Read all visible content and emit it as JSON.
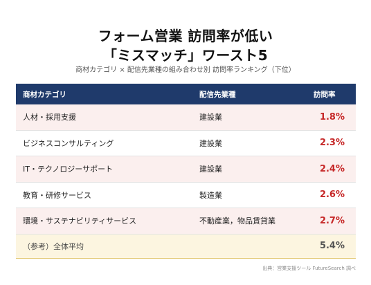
{
  "title_line1": "フォーム営業 訪問率が低い",
  "title_line2": "「ミスマッチ」ワースト5",
  "subtitle": "商材カテゴリ × 配信先業種の組み合わせ別 訪問率ランキング（下位）",
  "source": "出典：営業支援ツール FutureSearch 調べ",
  "colors": {
    "header": "#1f3a6b",
    "rate": "#c62828",
    "row_tint": "#fbefee",
    "avg_bg": "#fcf5e0"
  },
  "chart_data": {
    "type": "table",
    "title": "フォーム営業 訪問率が低い 「ミスマッチ」ワースト5",
    "columns": [
      "商材カテゴリ",
      "配信先業種",
      "訪問率"
    ],
    "rows": [
      {
        "category": "人材・採用支援",
        "industry": "建設業",
        "rate": "1.8%",
        "value": 1.8
      },
      {
        "category": "ビジネスコンサルティング",
        "industry": "建設業",
        "rate": "2.3%",
        "value": 2.3
      },
      {
        "category": "IT・テクノロジーサポート",
        "industry": "建設業",
        "rate": "2.4%",
        "value": 2.4
      },
      {
        "category": "教育・研修サービス",
        "industry": "製造業",
        "rate": "2.6%",
        "value": 2.6
      },
      {
        "category": "環境・サステナビリティサービス",
        "industry": "不動産業，物品賃貸業",
        "rate": "2.7%",
        "value": 2.7
      }
    ],
    "average": {
      "label": "（参考）全体平均",
      "rate": "5.4%",
      "value": 5.4
    }
  }
}
